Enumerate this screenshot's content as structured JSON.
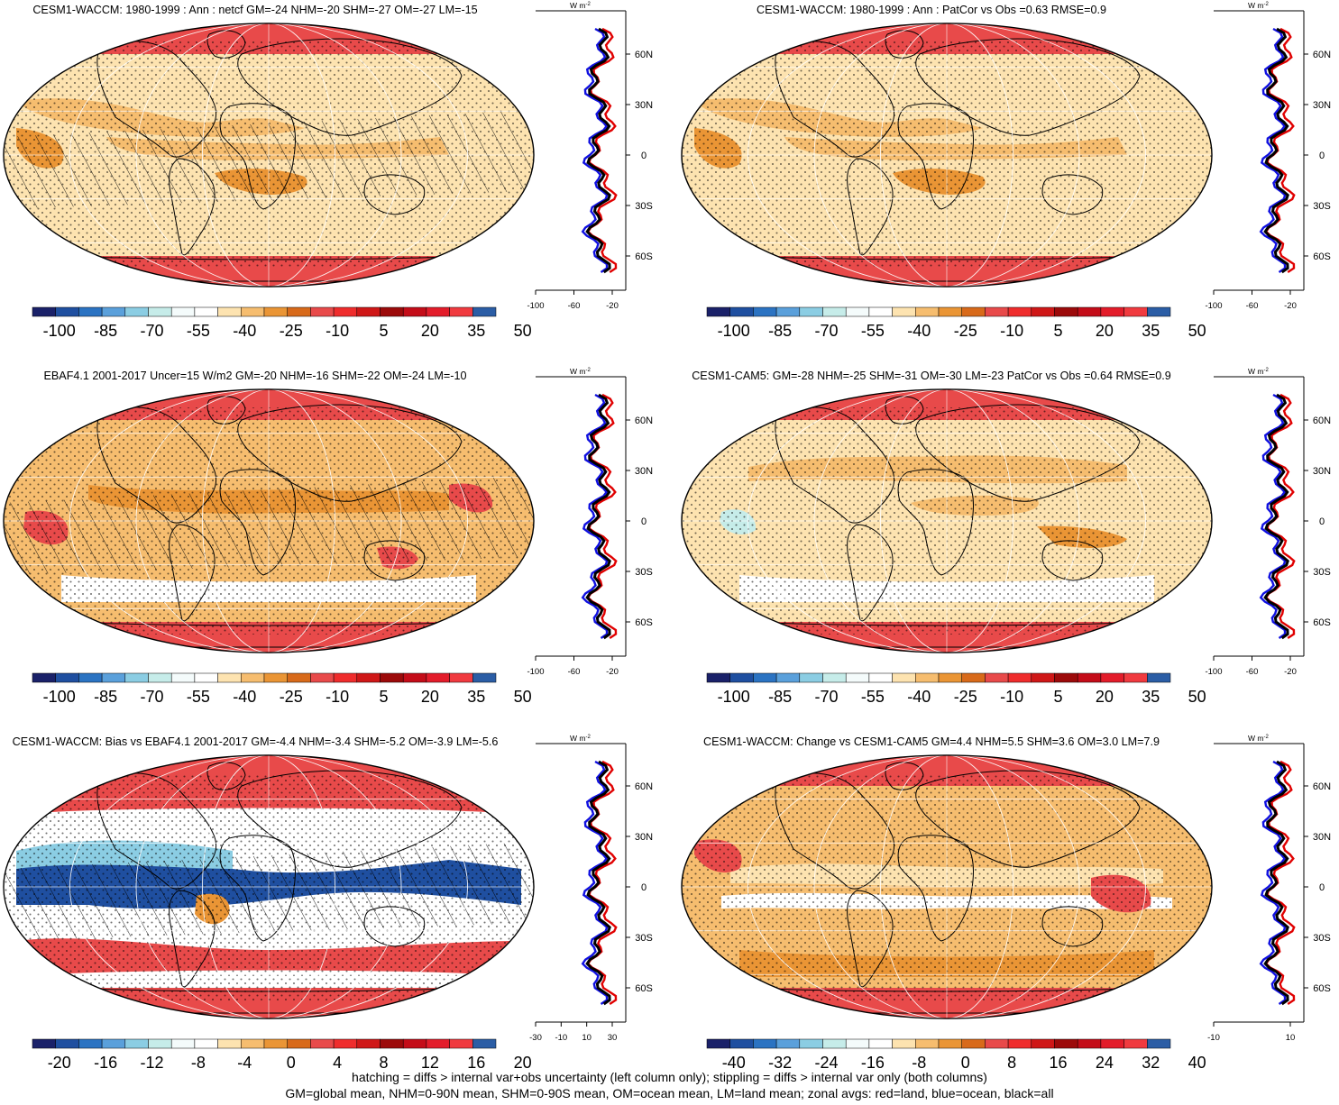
{
  "panels": [
    {
      "id": "waccm-1980-1999",
      "title": "CESM1-WACCM: 1980-1999 : Ann : netcf GM=-24 NHM=-20 SHM=-27 OM=-27 LM=-15",
      "colorbar_labels": [
        "-100",
        "-85",
        "-70",
        "-55",
        "-40",
        "-25",
        "-10",
        "5",
        "20",
        "35",
        "50"
      ],
      "colorbar_colors": [
        "#1a2169",
        "#1f4fa0",
        "#2b73c2",
        "#5aa0db",
        "#8bcde3",
        "#c6ece9",
        "#f4fbfb",
        "#ffffff",
        "#fde3b0",
        "#f6bd6f",
        "#ea9535",
        "#d86a1a",
        "#e84a4a",
        "#ef2c2c",
        "#cf1717",
        "#9c0a0a",
        "#c40c18",
        "#e31c2a",
        "#f03a3f",
        "#2b5da5"
      ],
      "zonal_xticks": [
        "-100",
        "-60",
        "-20"
      ],
      "zonal_unit": "W m",
      "zonal_unit_sup": "-2",
      "lat_labels": [
        "60N",
        "30N",
        "0",
        "30S",
        "60S"
      ],
      "hatching": true,
      "map_style": "mean"
    },
    {
      "id": "waccm-patcor",
      "title": "CESM1-WACCM: 1980-1999 : Ann : PatCor vs Obs =0.63 RMSE=0.9",
      "colorbar_labels": [
        "-100",
        "-85",
        "-70",
        "-55",
        "-40",
        "-25",
        "-10",
        "5",
        "20",
        "35",
        "50"
      ],
      "colorbar_colors": [
        "#1a2169",
        "#1f4fa0",
        "#2b73c2",
        "#5aa0db",
        "#8bcde3",
        "#c6ece9",
        "#f4fbfb",
        "#ffffff",
        "#fde3b0",
        "#f6bd6f",
        "#ea9535",
        "#d86a1a",
        "#e84a4a",
        "#ef2c2c",
        "#cf1717",
        "#9c0a0a",
        "#c40c18",
        "#e31c2a",
        "#f03a3f",
        "#2b5da5"
      ],
      "zonal_xticks": [
        "-100",
        "-60",
        "-20"
      ],
      "zonal_unit": "W m",
      "zonal_unit_sup": "-2",
      "lat_labels": [
        "60N",
        "30N",
        "0",
        "30S",
        "60S"
      ],
      "hatching": false,
      "map_style": "mean"
    },
    {
      "id": "ebaf41",
      "title": "EBAF4.1 2001-2017 Uncer=15 W/m2 GM=-20 NHM=-16 SHM=-22 OM=-24 LM=-10",
      "colorbar_labels": [
        "-100",
        "-85",
        "-70",
        "-55",
        "-40",
        "-25",
        "-10",
        "5",
        "20",
        "35",
        "50"
      ],
      "colorbar_colors": [
        "#1a2169",
        "#1f4fa0",
        "#2b73c2",
        "#5aa0db",
        "#8bcde3",
        "#c6ece9",
        "#f4fbfb",
        "#ffffff",
        "#fde3b0",
        "#f6bd6f",
        "#ea9535",
        "#d86a1a",
        "#e84a4a",
        "#ef2c2c",
        "#cf1717",
        "#9c0a0a",
        "#c40c18",
        "#e31c2a",
        "#f03a3f",
        "#2b5da5"
      ],
      "zonal_xticks": [
        "-100",
        "-60",
        "-20"
      ],
      "zonal_unit": "W m",
      "zonal_unit_sup": "-2",
      "lat_labels": [
        "60N",
        "30N",
        "0",
        "30S",
        "60S"
      ],
      "hatching": true,
      "map_style": "obs"
    },
    {
      "id": "cam5",
      "title": "CESM1-CAM5: GM=-28 NHM=-25 SHM=-31 OM=-30 LM=-23 PatCor vs Obs =0.64 RMSE=0.9",
      "colorbar_labels": [
        "-100",
        "-85",
        "-70",
        "-55",
        "-40",
        "-25",
        "-10",
        "5",
        "20",
        "35",
        "50"
      ],
      "colorbar_colors": [
        "#1a2169",
        "#1f4fa0",
        "#2b73c2",
        "#5aa0db",
        "#8bcde3",
        "#c6ece9",
        "#f4fbfb",
        "#ffffff",
        "#fde3b0",
        "#f6bd6f",
        "#ea9535",
        "#d86a1a",
        "#e84a4a",
        "#ef2c2c",
        "#cf1717",
        "#9c0a0a",
        "#c40c18",
        "#e31c2a",
        "#f03a3f",
        "#2b5da5"
      ],
      "zonal_xticks": [
        "-100",
        "-60",
        "-20"
      ],
      "zonal_unit": "W m",
      "zonal_unit_sup": "-2",
      "lat_labels": [
        "60N",
        "30N",
        "0",
        "30S",
        "60S"
      ],
      "hatching": false,
      "map_style": "cam"
    },
    {
      "id": "bias",
      "title": "CESM1-WACCM: Bias vs EBAF4.1 2001-2017 GM=-4.4 NHM=-3.4 SHM=-5.2 OM=-3.9 LM=-5.6",
      "colorbar_labels": [
        "-20",
        "-16",
        "-12",
        "-8",
        "-4",
        "0",
        "4",
        "8",
        "12",
        "16",
        "20"
      ],
      "colorbar_colors": [
        "#1a2169",
        "#1f4fa0",
        "#2b73c2",
        "#5aa0db",
        "#8bcde3",
        "#c6ece9",
        "#f4fbfb",
        "#ffffff",
        "#fde3b0",
        "#f6bd6f",
        "#ea9535",
        "#d86a1a",
        "#e84a4a",
        "#ef2c2c",
        "#cf1717",
        "#9c0a0a",
        "#c40c18",
        "#e31c2a",
        "#f03a3f",
        "#2b5da5"
      ],
      "zonal_xticks": [
        "-30",
        "-10",
        "10",
        "30"
      ],
      "zonal_unit": "W m",
      "zonal_unit_sup": "-2",
      "lat_labels": [
        "60N",
        "30N",
        "0",
        "30S",
        "60S"
      ],
      "hatching": true,
      "map_style": "bias"
    },
    {
      "id": "change",
      "title": "CESM1-WACCM: Change vs CESM1-CAM5 GM=4.4 NHM=5.5 SHM=3.6 OM=3.0 LM=7.9",
      "colorbar_labels": [
        "-40",
        "-32",
        "-24",
        "-16",
        "-8",
        "0",
        "8",
        "16",
        "24",
        "32",
        "40"
      ],
      "colorbar_colors": [
        "#1a2169",
        "#1f4fa0",
        "#2b73c2",
        "#5aa0db",
        "#8bcde3",
        "#c6ece9",
        "#f4fbfb",
        "#ffffff",
        "#fde3b0",
        "#f6bd6f",
        "#ea9535",
        "#d86a1a",
        "#e84a4a",
        "#ef2c2c",
        "#cf1717",
        "#9c0a0a",
        "#c40c18",
        "#e31c2a",
        "#f03a3f",
        "#2b5da5"
      ],
      "zonal_xticks": [
        "-10",
        "10"
      ],
      "zonal_unit": "W m",
      "zonal_unit_sup": "-2",
      "lat_labels": [
        "60N",
        "30N",
        "0",
        "30S",
        "60S"
      ],
      "hatching": false,
      "map_style": "change"
    }
  ],
  "footer": {
    "line1": "hatching = diffs > internal var+obs uncertainty (left column only); stippling = diffs > internal var only (both columns)",
    "line2": "GM=global mean, NHM=0-90N mean, SHM=0-90S mean, OM=ocean mean, LM=land mean; zonal avgs: red=land, blue=ocean, black=all"
  }
}
